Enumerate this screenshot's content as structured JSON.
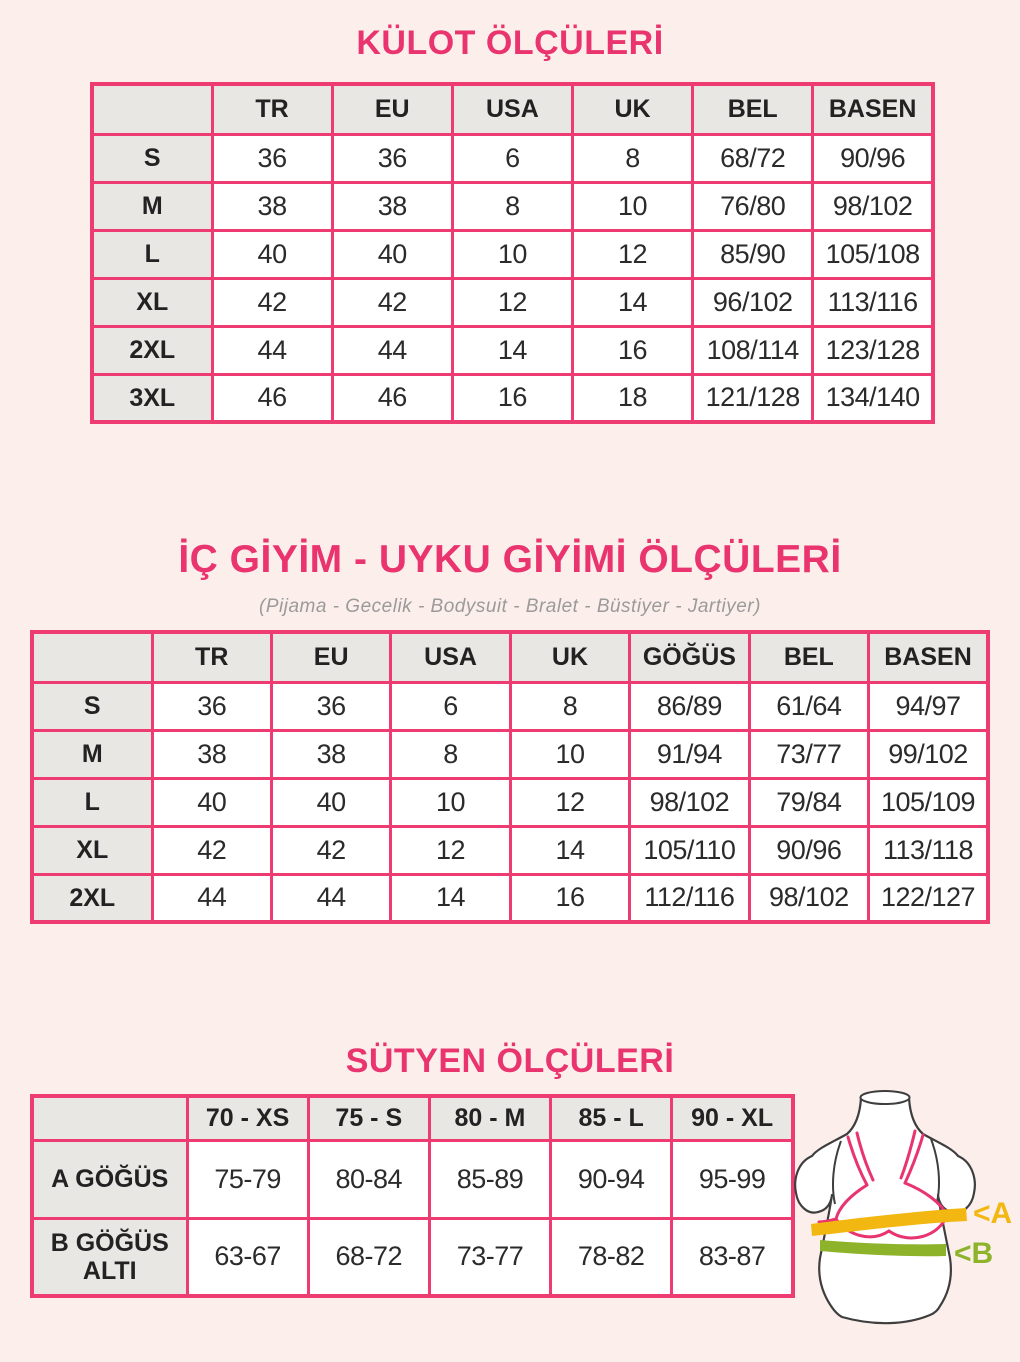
{
  "page": {
    "background_color": "#fcefeb",
    "accent_pink": "#ee3b71",
    "title_pink": "#e9346f",
    "cell_gray": "#e8e7e4",
    "text_color": "#2b2b2b"
  },
  "sections": {
    "kulot": {
      "title": "KÜLOT ÖLÇÜLERİ",
      "headers": [
        "",
        "TR",
        "EU",
        "USA",
        "UK",
        "BEL",
        "BASEN"
      ],
      "rows": [
        {
          "label": "S",
          "values": [
            "36",
            "36",
            "6",
            "8",
            "68/72",
            "90/96"
          ]
        },
        {
          "label": "M",
          "values": [
            "38",
            "38",
            "8",
            "10",
            "76/80",
            "98/102"
          ]
        },
        {
          "label": "L",
          "values": [
            "40",
            "40",
            "10",
            "12",
            "85/90",
            "105/108"
          ]
        },
        {
          "label": "XL",
          "values": [
            "42",
            "42",
            "12",
            "14",
            "96/102",
            "113/116"
          ]
        },
        {
          "label": "2XL",
          "values": [
            "44",
            "44",
            "14",
            "16",
            "108/114",
            "123/128"
          ]
        },
        {
          "label": "3XL",
          "values": [
            "46",
            "46",
            "16",
            "18",
            "121/128",
            "134/140"
          ]
        }
      ]
    },
    "ic_giyim": {
      "title": "İÇ GİYİM - UYKU GİYİMİ ÖLÇÜLERİ",
      "subtitle": "(Pijama - Gecelik - Bodysuit - Bralet - Büstiyer - Jartiyer)",
      "headers": [
        "",
        "TR",
        "EU",
        "USA",
        "UK",
        "GÖĞÜS",
        "BEL",
        "BASEN"
      ],
      "rows": [
        {
          "label": "S",
          "values": [
            "36",
            "36",
            "6",
            "8",
            "86/89",
            "61/64",
            "94/97"
          ]
        },
        {
          "label": "M",
          "values": [
            "38",
            "38",
            "8",
            "10",
            "91/94",
            "73/77",
            "99/102"
          ]
        },
        {
          "label": "L",
          "values": [
            "40",
            "40",
            "10",
            "12",
            "98/102",
            "79/84",
            "105/109"
          ]
        },
        {
          "label": "XL",
          "values": [
            "42",
            "42",
            "12",
            "14",
            "105/110",
            "90/96",
            "113/118"
          ]
        },
        {
          "label": "2XL",
          "values": [
            "44",
            "44",
            "14",
            "16",
            "112/116",
            "98/102",
            "122/127"
          ]
        }
      ]
    },
    "sutyen": {
      "title": "SÜTYEN ÖLÇÜLERİ",
      "headers": [
        "",
        "70 - XS",
        "75 - S",
        "80 - M",
        "85 - L",
        "90 - XL"
      ],
      "rows": [
        {
          "label": "A GÖĞÜS",
          "values": [
            "75-79",
            "80-84",
            "85-89",
            "90-94",
            "95-99"
          ]
        },
        {
          "label": "B GÖĞÜS ALTI",
          "values": [
            "63-67",
            "68-72",
            "73-77",
            "78-82",
            "83-87"
          ]
        }
      ]
    }
  },
  "illustration": {
    "label_a": "<A",
    "label_b": "<B",
    "bust_line_color": "#f3b712",
    "underbust_line_color": "#8db32a",
    "bra_color": "#e8346f",
    "outline_color": "#3e3e3e"
  }
}
